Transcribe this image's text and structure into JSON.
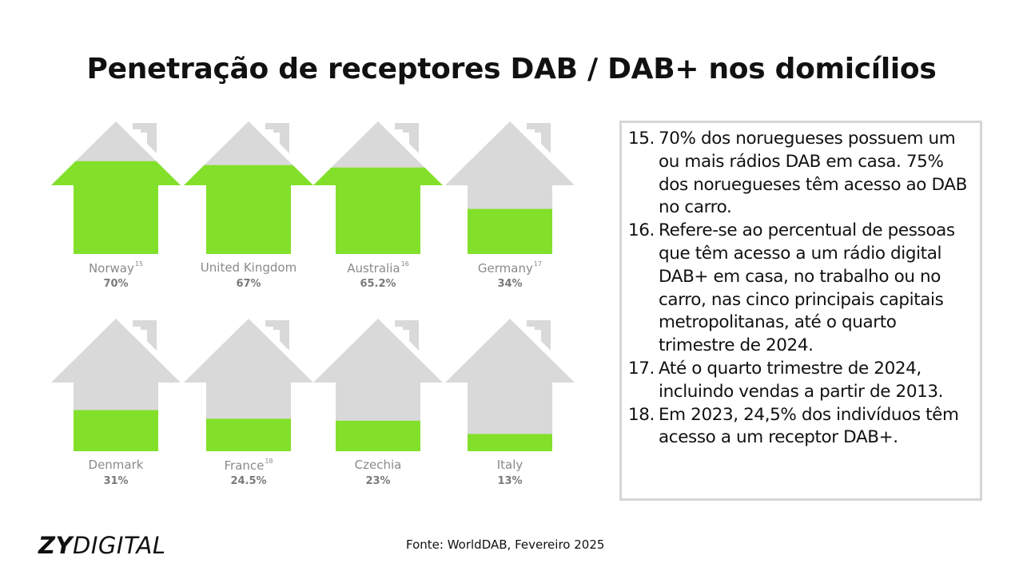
{
  "title": "Penetração de receptores DAB / DAB+ nos domicílios",
  "chart_data": {
    "type": "bar",
    "categories": [
      "Norway",
      "United Kingdom",
      "Australia",
      "Germany",
      "Denmark",
      "France",
      "Czechia",
      "Italy"
    ],
    "footnote_refs": [
      "15",
      "",
      "16",
      "17",
      "",
      "18",
      "",
      ""
    ],
    "values": [
      70,
      67,
      65.2,
      34,
      31,
      24.5,
      23,
      13
    ],
    "value_labels": [
      "70%",
      "67%",
      "65.2%",
      "34%",
      "31%",
      "24.5%",
      "23%",
      "13%"
    ],
    "ylim": [
      0,
      100
    ],
    "fill_color": "#82e02a",
    "empty_color": "#d9d9d9"
  },
  "notes": [
    {
      "num": "15.",
      "text": "70% dos noruegueses possuem um ou mais rádios DAB em casa. 75% dos noruegueses têm acesso ao DAB no carro."
    },
    {
      "num": "16.",
      "text": "Refere-se ao percentual de pessoas que têm acesso a um rádio digital DAB+ em casa, no trabalho ou no carro, nas cinco principais capitais metropolitanas, até o quarto trimestre de 2024."
    },
    {
      "num": "17.",
      "text": "Até o quarto trimestre de 2024, incluindo vendas a partir de 2013."
    },
    {
      "num": "18.",
      "text": "Em 2023, 24,5% dos indivíduos têm acesso a um receptor DAB+."
    }
  ],
  "logo": {
    "zy": "ZY",
    "digital": "DIGITAL"
  },
  "source": "Fonte: WorldDAB, Fevereiro 2025"
}
